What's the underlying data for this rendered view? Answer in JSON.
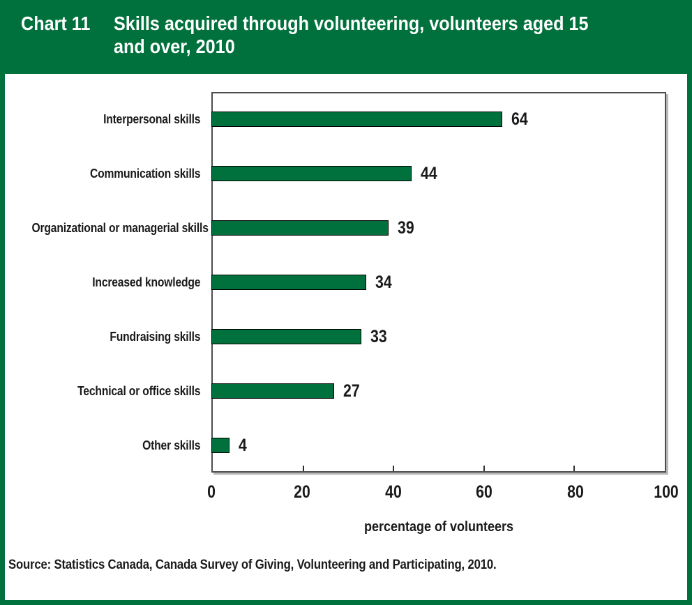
{
  "header": {
    "chart_number": "Chart 11",
    "title_line1": "Skills acquired through volunteering, volunteers aged 15",
    "title_line2": "and over, 2010"
  },
  "chart_data": {
    "type": "bar",
    "orientation": "horizontal",
    "title": "Skills acquired through volunteering, volunteers aged 15 and over, 2010",
    "categories": [
      "Interpersonal skills",
      "Communication skills",
      "Organizational or managerial skills",
      "Increased knowledge",
      "Fundraising skills",
      "Technical or office skills",
      "Other skills"
    ],
    "values": [
      64,
      44,
      39,
      34,
      33,
      27,
      4
    ],
    "xlabel": "percentage of volunteers",
    "ylabel": "",
    "xlim": [
      0,
      100
    ],
    "x_ticks": [
      0,
      20,
      40,
      60,
      80,
      100
    ],
    "grid": false,
    "legend": "none",
    "bar_color": "#00713C",
    "bar_border_color": "#000000"
  },
  "source_note": "Source: Statistics Canada, Canada Survey of Giving, Volunteering and Participating, 2010.",
  "colors": {
    "brand_green": "#00713C",
    "text": "#1a1a1a",
    "plot_border": "#4d4d4d"
  }
}
